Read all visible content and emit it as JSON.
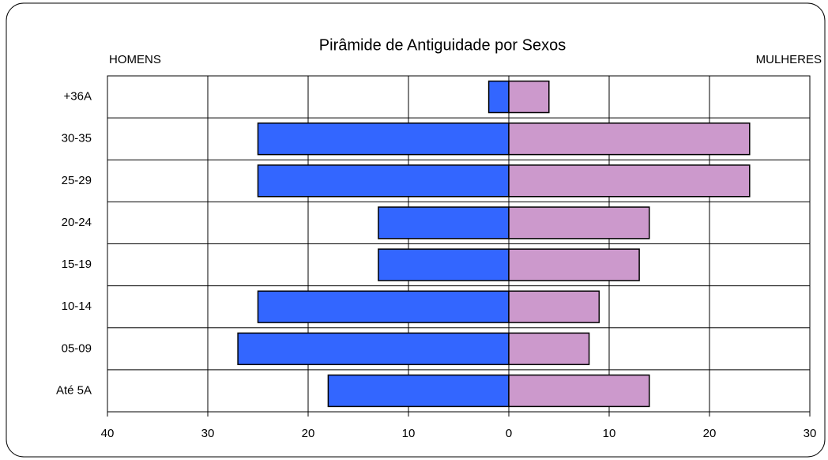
{
  "chart_data": {
    "type": "pyramid",
    "title": "Pirâmide de Antiguidade por Sexos",
    "left_label": "HOMENS",
    "right_label": "MULHERES",
    "categories": [
      "+36A",
      "30-35",
      "25-29",
      "20-24",
      "15-19",
      "10-14",
      "05-09",
      "Até 5A"
    ],
    "series": [
      {
        "name": "HOMENS",
        "color": "#3366ff",
        "values": [
          -2,
          -25,
          -25,
          -13,
          -13,
          -25,
          -27,
          -18
        ]
      },
      {
        "name": "MULHERES",
        "color": "#cc99cc",
        "values": [
          4,
          24,
          24,
          14,
          13,
          9,
          8,
          14
        ]
      }
    ],
    "xlim": [
      -40,
      30
    ],
    "xticks": [
      {
        "value": -40,
        "label": "40"
      },
      {
        "value": -30,
        "label": "30"
      },
      {
        "value": -20,
        "label": "20"
      },
      {
        "value": -10,
        "label": "10"
      },
      0,
      10,
      20,
      30
    ],
    "grid": true
  }
}
